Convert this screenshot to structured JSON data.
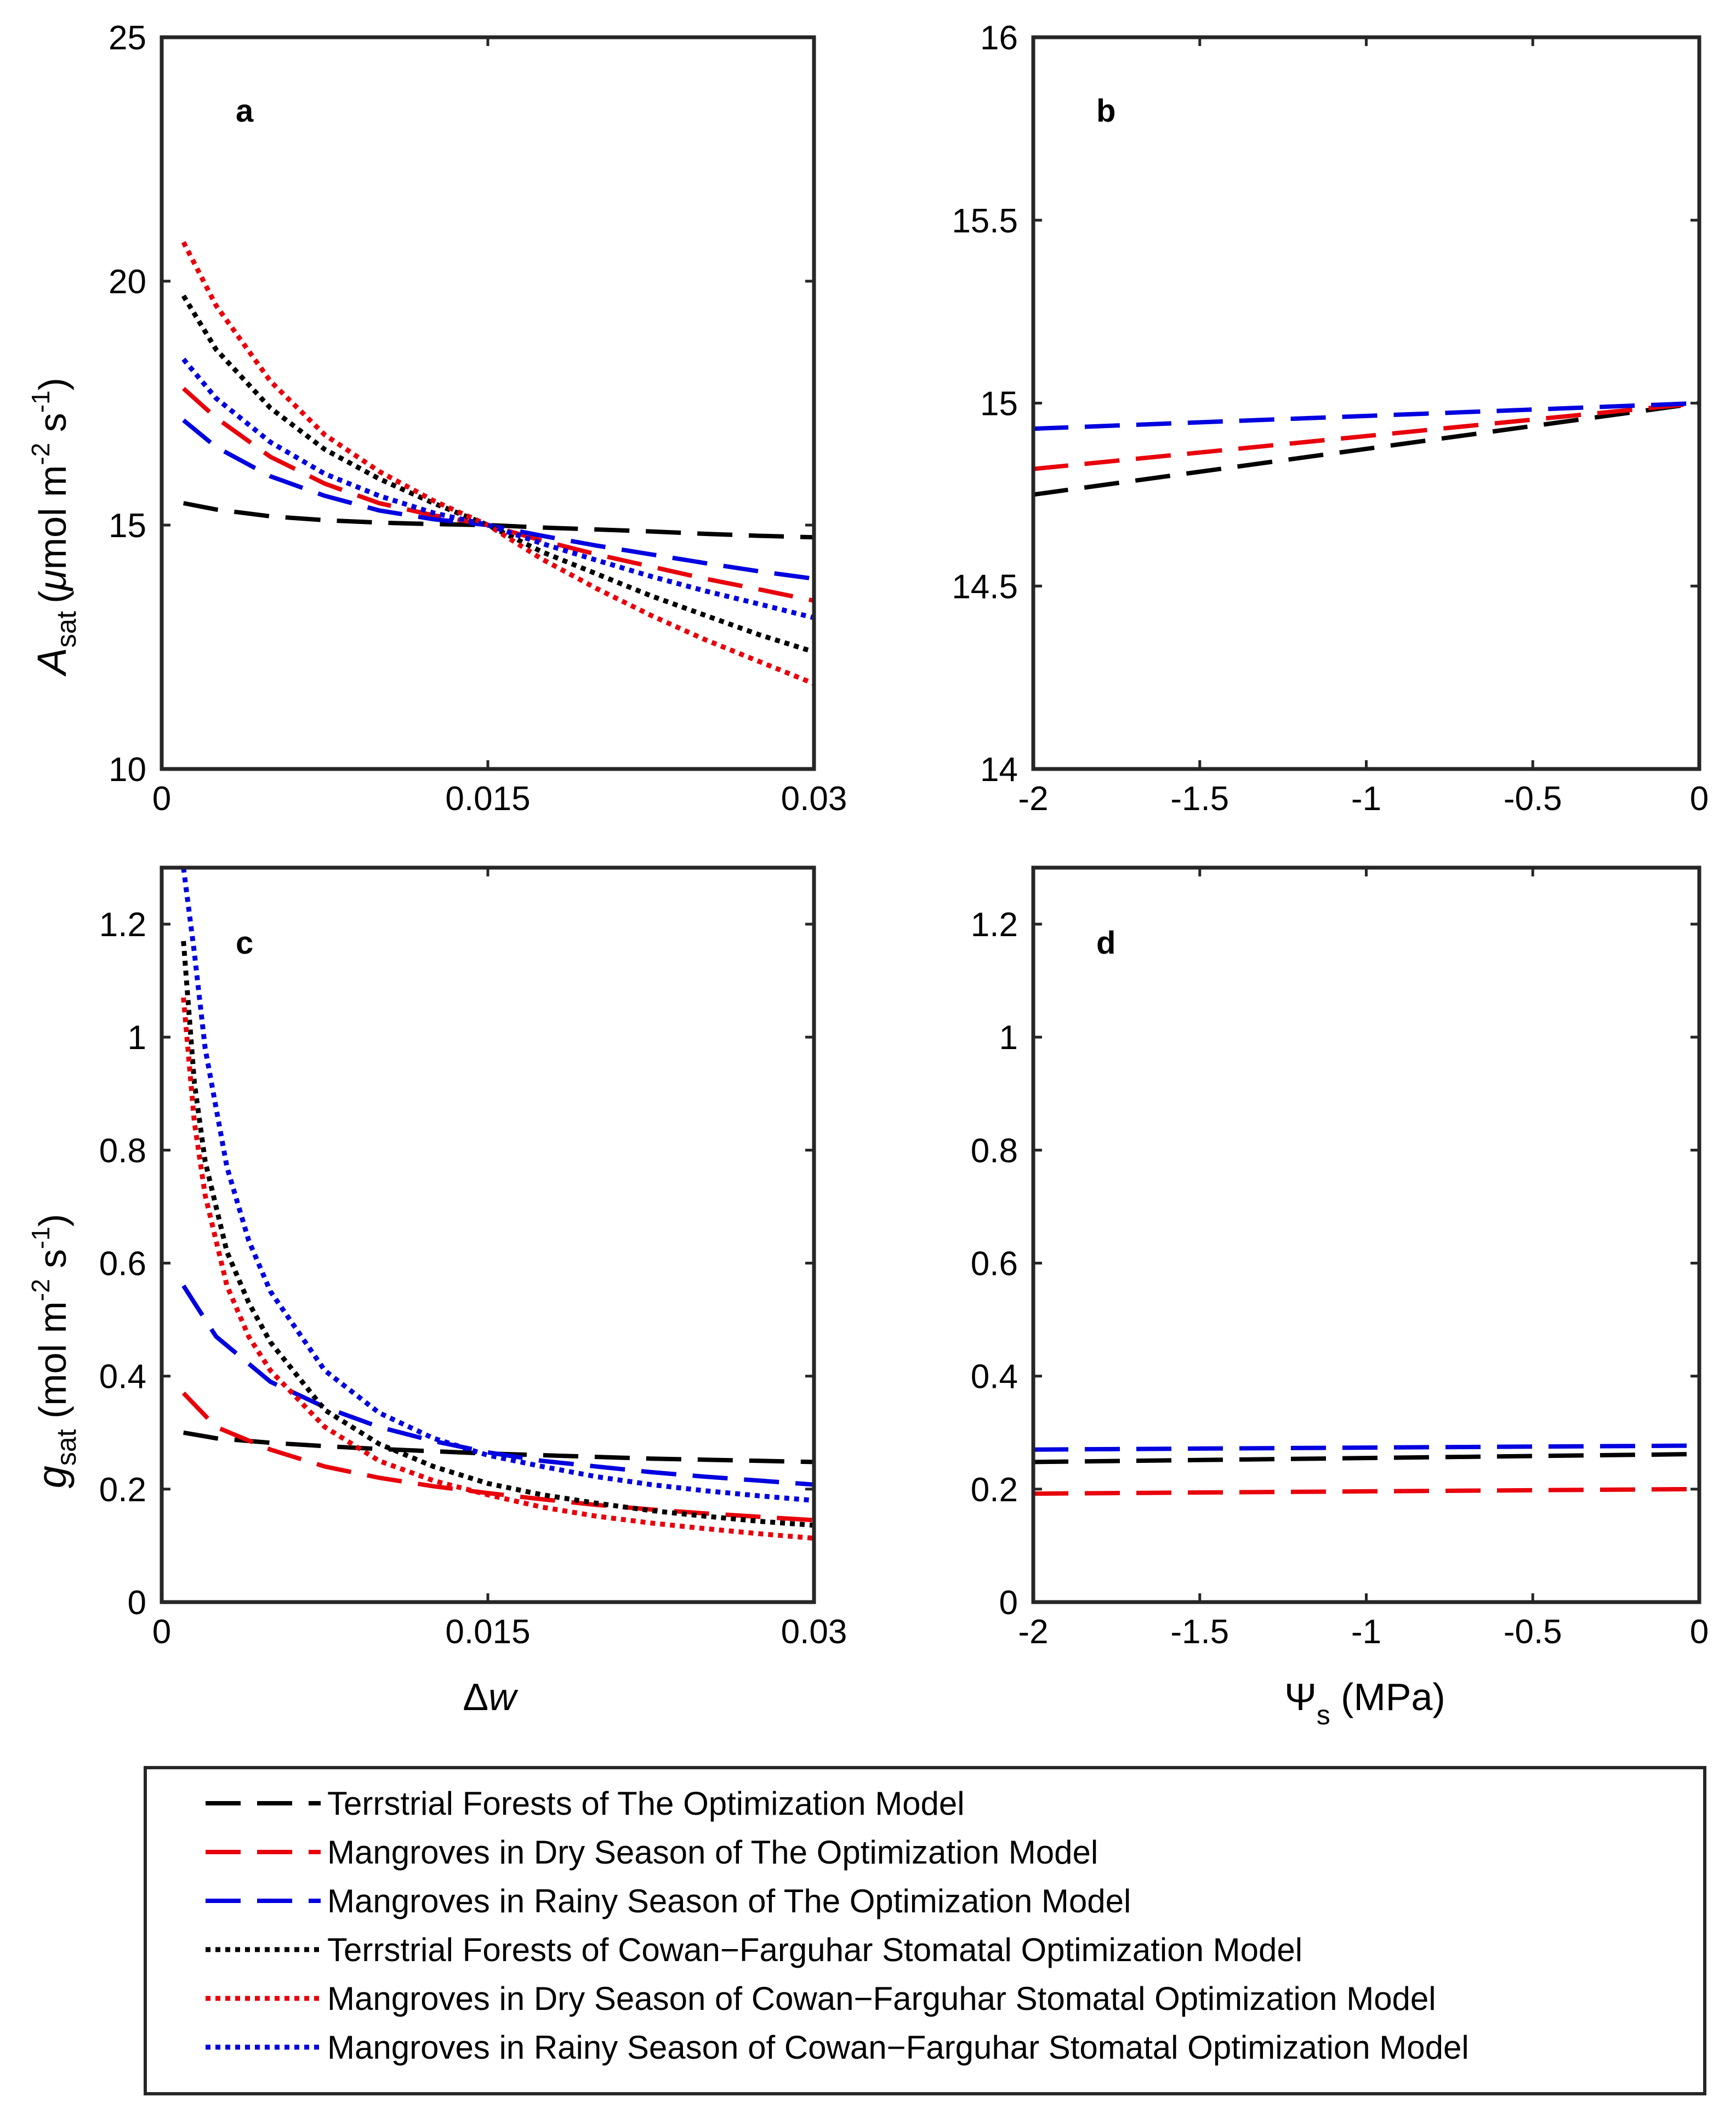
{
  "chart_data": [
    {
      "panel": "a",
      "type": "line",
      "xlabel": "",
      "ylabel": "A_sat (μmol m^-2 s^-1)",
      "ylabel_parts": {
        "symbol": "A",
        "subscript": "sat",
        "units_open": "(",
        "mu": "μ",
        "units": "mol m",
        "exp1": "-2",
        "mid": " s",
        "exp2": "-1",
        "units_close": ")"
      },
      "xlim": [
        0,
        0.03
      ],
      "ylim": [
        10,
        25
      ],
      "xticks": [
        0,
        0.015,
        0.03
      ],
      "xticklabels": [
        "0",
        "0.015",
        "0.03"
      ],
      "yticks": [
        10,
        15,
        20,
        25
      ],
      "yticklabels": [
        "10",
        "15",
        "20",
        "25"
      ],
      "series": [
        {
          "name": "Terrstrial Forests of The Optimization Model",
          "color": "#000000",
          "style": "dashed",
          "x": [
            0.001,
            0.0025,
            0.005,
            0.0075,
            0.01,
            0.0125,
            0.015,
            0.0175,
            0.02,
            0.0225,
            0.025,
            0.0275,
            0.03
          ],
          "y": [
            15.45,
            15.32,
            15.18,
            15.1,
            15.05,
            15.02,
            15.0,
            14.95,
            14.91,
            14.87,
            14.82,
            14.78,
            14.75
          ]
        },
        {
          "name": "Mangroves in Dry Season of The Optimization Model",
          "color": "#e8000b",
          "style": "dashed",
          "x": [
            0.001,
            0.0025,
            0.005,
            0.0075,
            0.01,
            0.0125,
            0.015,
            0.0175,
            0.02,
            0.0225,
            0.025,
            0.0275,
            0.03
          ],
          "y": [
            17.8,
            17.2,
            16.4,
            15.85,
            15.45,
            15.2,
            15.0,
            14.68,
            14.4,
            14.15,
            13.9,
            13.68,
            13.45
          ]
        },
        {
          "name": "Mangroves in Rainy Season of The Optimization Model",
          "color": "#0000e0",
          "style": "dashed",
          "x": [
            0.001,
            0.0025,
            0.005,
            0.0075,
            0.01,
            0.0125,
            0.015,
            0.0175,
            0.02,
            0.0225,
            0.025,
            0.0275,
            0.03
          ],
          "y": [
            17.15,
            16.6,
            16.0,
            15.6,
            15.3,
            15.12,
            15.0,
            14.78,
            14.58,
            14.4,
            14.22,
            14.05,
            13.9
          ]
        },
        {
          "name": "Terrstrial Forests of Cowan-Farguhar Stomatal Optimization Model",
          "color": "#000000",
          "style": "dotted",
          "x": [
            0.001,
            0.0025,
            0.005,
            0.0075,
            0.01,
            0.0125,
            0.015,
            0.0175,
            0.02,
            0.0225,
            0.025,
            0.0275,
            0.03
          ],
          "y": [
            19.7,
            18.6,
            17.4,
            16.55,
            15.95,
            15.45,
            15.0,
            14.45,
            14.0,
            13.55,
            13.15,
            12.75,
            12.4
          ]
        },
        {
          "name": "Mangroves in Dry Season of Cowan-Farguhar Stomatal Optimization Model",
          "color": "#e8000b",
          "style": "dotted",
          "x": [
            0.001,
            0.0025,
            0.005,
            0.0075,
            0.01,
            0.0125,
            0.015,
            0.0175,
            0.02,
            0.0225,
            0.025,
            0.0275,
            0.03
          ],
          "y": [
            20.8,
            19.5,
            17.95,
            16.85,
            16.1,
            15.5,
            15.0,
            14.3,
            13.7,
            13.15,
            12.65,
            12.2,
            11.75
          ]
        },
        {
          "name": "Mangroves in Rainy Season of Cowan-Farguhar Stomatal Optimization Model",
          "color": "#0000e0",
          "style": "dotted",
          "x": [
            0.001,
            0.0025,
            0.005,
            0.0075,
            0.01,
            0.0125,
            0.015,
            0.0175,
            0.02,
            0.0225,
            0.025,
            0.0275,
            0.03
          ],
          "y": [
            18.4,
            17.6,
            16.7,
            16.05,
            15.6,
            15.25,
            15.0,
            14.62,
            14.28,
            13.95,
            13.65,
            13.38,
            13.1
          ]
        }
      ]
    },
    {
      "panel": "b",
      "type": "line",
      "xlabel": "",
      "ylabel": "",
      "xlim": [
        -2,
        0
      ],
      "ylim": [
        14,
        16
      ],
      "xticks": [
        -2,
        -1.5,
        -1,
        -0.5,
        0
      ],
      "xticklabels": [
        "-2",
        "-1.5",
        "-1",
        "-0.5",
        "0"
      ],
      "yticks": [
        14,
        14.5,
        15,
        15.5,
        16
      ],
      "yticklabels": [
        "14",
        "14.5",
        "15",
        "15.5",
        "16"
      ],
      "series": [
        {
          "name": "Terrstrial Forests of The Optimization Model",
          "color": "#000000",
          "style": "dashed",
          "x": [
            -2,
            0
          ],
          "y": [
            14.75,
            15.0
          ]
        },
        {
          "name": "Mangroves in Dry Season of The Optimization Model",
          "color": "#e8000b",
          "style": "dashed",
          "x": [
            -2,
            0
          ],
          "y": [
            14.82,
            15.0
          ]
        },
        {
          "name": "Mangroves in Rainy Season of The Optimization Model",
          "color": "#0000e0",
          "style": "dashed",
          "x": [
            -2,
            0
          ],
          "y": [
            14.93,
            15.0
          ]
        }
      ]
    },
    {
      "panel": "c",
      "type": "line",
      "xlabel": "Δw",
      "xlabel_parts": {
        "delta": "Δ",
        "var": "w"
      },
      "ylabel": "g_sat (mol m^-2 s^-1)",
      "ylabel_parts": {
        "symbol": "g",
        "subscript": "sat",
        "units": " (mol m",
        "exp1": "-2",
        "mid": " s",
        "exp2": "-1",
        "units_close": ")"
      },
      "xlim": [
        0,
        0.03
      ],
      "ylim": [
        0,
        1.3
      ],
      "xticks": [
        0,
        0.015,
        0.03
      ],
      "xticklabels": [
        "0",
        "0.015",
        "0.03"
      ],
      "yticks": [
        0,
        0.2,
        0.4,
        0.6,
        0.8,
        1,
        1.2
      ],
      "yticklabels": [
        "0",
        "0.2",
        "0.4",
        "0.6",
        "0.8",
        "1",
        "1.2"
      ],
      "series": [
        {
          "name": "Terrstrial Forests of The Optimization Model",
          "color": "#000000",
          "style": "dashed",
          "x": [
            0.001,
            0.0025,
            0.005,
            0.0075,
            0.01,
            0.0125,
            0.015,
            0.0175,
            0.02,
            0.0225,
            0.025,
            0.0275,
            0.03
          ],
          "y": [
            0.3,
            0.29,
            0.282,
            0.276,
            0.271,
            0.267,
            0.263,
            0.26,
            0.257,
            0.254,
            0.252,
            0.25,
            0.248
          ]
        },
        {
          "name": "Mangroves in Dry Season of The Optimization Model",
          "color": "#e8000b",
          "style": "dashed",
          "x": [
            0.001,
            0.0025,
            0.005,
            0.0075,
            0.01,
            0.0125,
            0.015,
            0.0175,
            0.02,
            0.0225,
            0.025,
            0.0275,
            0.03
          ],
          "y": [
            0.37,
            0.31,
            0.27,
            0.24,
            0.22,
            0.205,
            0.193,
            0.182,
            0.172,
            0.164,
            0.157,
            0.151,
            0.145
          ]
        },
        {
          "name": "Mangroves in Rainy Season of The Optimization Model",
          "color": "#0000e0",
          "style": "dashed",
          "x": [
            0.001,
            0.0025,
            0.005,
            0.0075,
            0.01,
            0.0125,
            0.015,
            0.0175,
            0.02,
            0.0225,
            0.025,
            0.0275,
            0.03
          ],
          "y": [
            0.56,
            0.47,
            0.39,
            0.345,
            0.31,
            0.285,
            0.265,
            0.25,
            0.24,
            0.23,
            0.222,
            0.215,
            0.208
          ]
        },
        {
          "name": "Terrstrial Forests of Cowan-Farguhar Stomatal Optimization Model",
          "color": "#000000",
          "style": "dotted",
          "x": [
            0.001,
            0.0015,
            0.002,
            0.003,
            0.004,
            0.005,
            0.0075,
            0.01,
            0.0125,
            0.015,
            0.0175,
            0.02,
            0.0225,
            0.025,
            0.0275,
            0.03
          ],
          "y": [
            1.17,
            0.92,
            0.78,
            0.62,
            0.53,
            0.46,
            0.34,
            0.28,
            0.24,
            0.21,
            0.19,
            0.175,
            0.162,
            0.152,
            0.143,
            0.136
          ]
        },
        {
          "name": "Mangroves in Dry Season of Cowan-Farguhar Stomatal Optimization Model",
          "color": "#e8000b",
          "style": "dotted",
          "x": [
            0.001,
            0.0015,
            0.002,
            0.003,
            0.004,
            0.005,
            0.0075,
            0.01,
            0.0125,
            0.015,
            0.0175,
            0.02,
            0.0225,
            0.025,
            0.0275,
            0.03
          ],
          "y": [
            1.07,
            0.85,
            0.72,
            0.56,
            0.47,
            0.41,
            0.31,
            0.25,
            0.215,
            0.19,
            0.168,
            0.152,
            0.14,
            0.13,
            0.121,
            0.113
          ]
        },
        {
          "name": "Mangroves in Rainy Season of Cowan-Farguhar Stomatal Optimization Model",
          "color": "#0000e0",
          "style": "dotted",
          "x": [
            0.001,
            0.0015,
            0.002,
            0.003,
            0.004,
            0.005,
            0.0075,
            0.01,
            0.0125,
            0.015,
            0.0175,
            0.02,
            0.0225,
            0.025,
            0.0275,
            0.03
          ],
          "y": [
            1.3,
            1.15,
            0.98,
            0.77,
            0.64,
            0.55,
            0.41,
            0.335,
            0.29,
            0.26,
            0.24,
            0.222,
            0.208,
            0.197,
            0.188,
            0.18
          ]
        }
      ]
    },
    {
      "panel": "d",
      "type": "line",
      "xlabel": "Ψs (MPa)",
      "xlabel_parts": {
        "psi": "Ψ",
        "subscript": "s",
        "units": " (MPa)"
      },
      "ylabel": "",
      "xlim": [
        -2,
        0
      ],
      "ylim": [
        0,
        1.3
      ],
      "xticks": [
        -2,
        -1.5,
        -1,
        -0.5,
        0
      ],
      "xticklabels": [
        "-2",
        "-1.5",
        "-1",
        "-0.5",
        "0"
      ],
      "yticks": [
        0,
        0.2,
        0.4,
        0.6,
        0.8,
        1,
        1.2
      ],
      "yticklabels": [
        "0",
        "0.2",
        "0.4",
        "0.6",
        "0.8",
        "1",
        "1.2"
      ],
      "series": [
        {
          "name": "Terrstrial Forests of The Optimization Model",
          "color": "#000000",
          "style": "dashed",
          "x": [
            -2,
            0
          ],
          "y": [
            0.248,
            0.262
          ]
        },
        {
          "name": "Mangroves in Dry Season of The Optimization Model",
          "color": "#e8000b",
          "style": "dashed",
          "x": [
            -2,
            0
          ],
          "y": [
            0.192,
            0.2
          ]
        },
        {
          "name": "Mangroves in Rainy Season of The Optimization Model",
          "color": "#0000e0",
          "style": "dashed",
          "x": [
            -2,
            0
          ],
          "y": [
            0.27,
            0.277
          ]
        }
      ]
    }
  ],
  "legend": {
    "position": "bottom",
    "entries": [
      {
        "label": "Terrstrial Forests of The Optimization Model",
        "color": "#000000",
        "style": "dashed"
      },
      {
        "label": "Mangroves in Dry Season of The Optimization Model",
        "color": "#e8000b",
        "style": "dashed"
      },
      {
        "label": "Mangroves in Rainy Season of The Optimization Model",
        "color": "#0000e0",
        "style": "dashed"
      },
      {
        "label": "Terrstrial Forests of Cowan−Farguhar Stomatal Optimization Model",
        "color": "#000000",
        "style": "dotted"
      },
      {
        "label": "Mangroves in Dry Season of Cowan−Farguhar Stomatal Optimization Model",
        "color": "#e8000b",
        "style": "dotted"
      },
      {
        "label": "Mangroves in Rainy Season of Cowan−Farguhar Stomatal Optimization Model",
        "color": "#0000e0",
        "style": "dotted"
      }
    ]
  }
}
